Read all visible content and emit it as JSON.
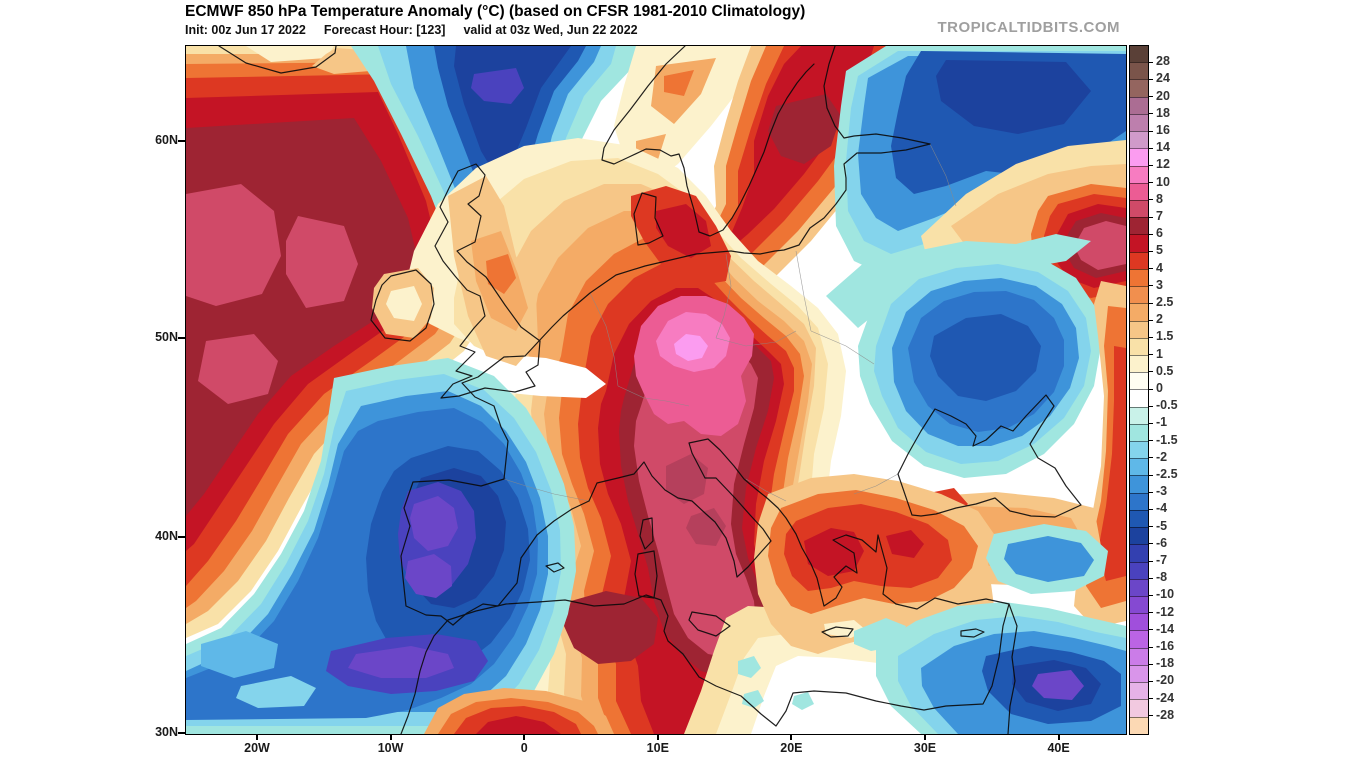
{
  "header": {
    "title": "ECMWF 850 hPa Temperature Anomaly (°C) (based on CFSR 1981-2010 Climatology)",
    "init": "Init: 00z Jun 17 2022",
    "forecast_hour": "Forecast Hour: [123]",
    "valid": "valid at 03z Wed, Jun 22 2022",
    "watermark": "TROPICALTIDBITS.COM"
  },
  "map": {
    "lat_labels": [
      "60N",
      "50N",
      "40N",
      "30N"
    ],
    "lon_labels": [
      "20W",
      "10W",
      "0",
      "10E",
      "20E",
      "30E",
      "40E"
    ]
  },
  "colorbar": {
    "labels": [
      "28",
      "24",
      "20",
      "18",
      "16",
      "14",
      "12",
      "10",
      "8",
      "7",
      "6",
      "5",
      "4",
      "3",
      "2.5",
      "2",
      "1.5",
      "1",
      "0.5",
      "0",
      "-0.5",
      "-1",
      "-1.5",
      "-2",
      "-2.5",
      "-3",
      "-4",
      "-5",
      "-6",
      "-7",
      "-8",
      "-10",
      "-12",
      "-14",
      "-16",
      "-18",
      "-20",
      "-24",
      "-28"
    ],
    "band_colors": [
      "#5a4037",
      "#7a544a",
      "#94655f",
      "#ab6d93",
      "#bd7fad",
      "#d09aca",
      "#fb9cf0",
      "#f77cc1",
      "#ec5c94",
      "#d04a68",
      "#9e2433",
      "#c41425",
      "#dd3822",
      "#ee7434",
      "#f18f4e",
      "#f4ab66",
      "#f6c687",
      "#f9e1a8",
      "#fcf2cc",
      "#fffef2",
      "#ffffff",
      "#c9f2e9",
      "#a0e6e0",
      "#84d4ec",
      "#5fb8e8",
      "#3e94da",
      "#2d75ca",
      "#1f58b2",
      "#1c429e",
      "#3340b0",
      "#4a42be",
      "#6b46c8",
      "#8549d2",
      "#a04fdc",
      "#bb64e4",
      "#cb7ce8",
      "#d995ea",
      "#e6b2e8",
      "#f2c9e0",
      "#fcd9b4"
    ]
  },
  "chart_data": {
    "type": "heatmap",
    "subtype": "filled-contour-weather-map",
    "title": "ECMWF 850 hPa Temperature Anomaly (°C) (based on CFSR 1981-2010 Climatology)",
    "units": "°C",
    "model": "ECMWF",
    "level": "850 hPa",
    "init_time": "00z Jun 17 2022",
    "forecast_hour": 123,
    "valid_time": "03z Wed, Jun 22 2022",
    "x_axis": {
      "label": "longitude",
      "ticks": [
        "20W",
        "10W",
        "0",
        "10E",
        "20E",
        "30E",
        "40E"
      ],
      "range": [
        "25W",
        "45E"
      ]
    },
    "y_axis": {
      "label": "latitude",
      "ticks": [
        "60N",
        "50N",
        "40N",
        "30N"
      ],
      "range": [
        "30N",
        "65N"
      ]
    },
    "scale_levels": [
      28,
      24,
      20,
      18,
      16,
      14,
      12,
      10,
      8,
      7,
      6,
      5,
      4,
      3,
      2.5,
      2,
      1.5,
      1,
      0.5,
      0,
      -0.5,
      -1,
      -1.5,
      -2,
      -2.5,
      -3,
      -4,
      -5,
      -6,
      -7,
      -8,
      -10,
      -12,
      -14,
      -16,
      -18,
      -20,
      -24,
      -28
    ],
    "legend_position": "right",
    "features": [
      {
        "region": "North Atlantic west of Ireland",
        "sign": "warm",
        "approx_peak_anomaly_c": 9
      },
      {
        "region": "Central Europe heat dome (S Germany / Czechia / Austria)",
        "sign": "warm",
        "approx_peak_anomaly_c": 15
      },
      {
        "region": "Italy and Adriatic / Balkans",
        "sign": "warm",
        "approx_peak_anomaly_c": 10
      },
      {
        "region": "Scandinavia / Baltic (S Sweden)",
        "sign": "warm",
        "approx_peak_anomaly_c": 6
      },
      {
        "region": "NE Algeria / Tunisia",
        "sign": "warm",
        "approx_peak_anomaly_c": 7
      },
      {
        "region": "East of Caspian-side map edge (SE Russia corner)",
        "sign": "warm",
        "approx_peak_anomaly_c": 8
      },
      {
        "region": "Norwegian Sea / north of Scotland trough",
        "sign": "cold",
        "approx_peak_anomaly_c": -7
      },
      {
        "region": "NE corner (White Sea / NW Russia)",
        "sign": "cold",
        "approx_peak_anomaly_c": -6
      },
      {
        "region": "Iberia / NE Atlantic cold pool (Portugal core)",
        "sign": "cold",
        "approx_peak_anomaly_c": -10
      },
      {
        "region": "Ukraine cold pool",
        "sign": "cold",
        "approx_peak_anomaly_c": -5
      },
      {
        "region": "Levant / Syria cold pool",
        "sign": "cold",
        "approx_peak_anomaly_c": -10
      }
    ]
  }
}
